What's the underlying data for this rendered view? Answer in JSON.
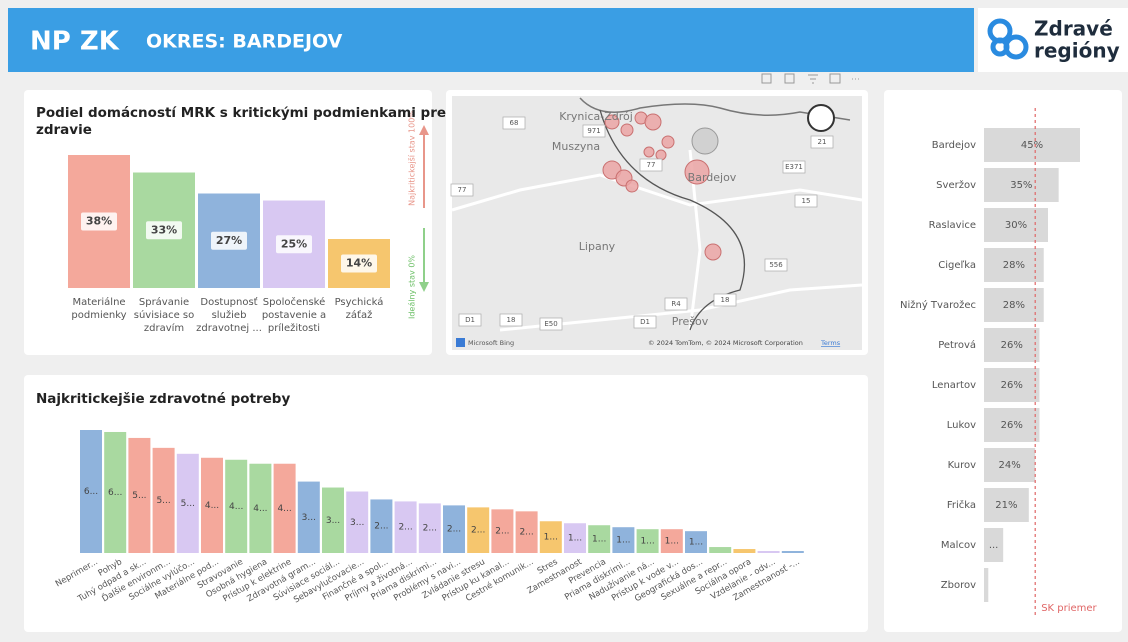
{
  "header": {
    "title": "NP ZK",
    "subtitle": "OKRES: BARDEJOV",
    "logo": [
      "Zdravé",
      "regióny"
    ]
  },
  "map": {
    "places": [
      "Krynica-Zdrój",
      "Muszyna",
      "Bardejov",
      "Lipany",
      "Prešov"
    ],
    "roads": [
      "68",
      "971",
      "77",
      "21",
      "E371",
      "77",
      "15",
      "556",
      "R4",
      "18",
      "D1",
      "18",
      "E50",
      "D1"
    ],
    "provider": "Microsoft Bing",
    "attribution": "© 2024 TomTom, © 2024 Microsoft Corporation",
    "terms": "Terms"
  },
  "chart_data": [
    {
      "type": "bar",
      "title": "Podiel domácností MRK s kritickými podmienkami pre zdravie",
      "categories": [
        "Materiálne podmienky",
        "Správanie súvisiace so zdravím",
        "Dostupnosť služieb zdravotnej ...",
        "Spoločenské postavenie a príležitosti",
        "Psychická záťaž"
      ],
      "values": [
        38,
        33,
        27,
        25,
        14
      ],
      "value_labels": [
        "38%",
        "33%",
        "27%",
        "25%",
        "14%"
      ],
      "colors": [
        "#f4a89b",
        "#a9d9a0",
        "#8fb3dc",
        "#d8c8f2",
        "#f6c66e"
      ],
      "annotations": [
        "Najkritickejší stav 100%",
        "Ideálny stav 0%"
      ]
    },
    {
      "type": "bar",
      "title": "Najkritickejšie zdravotné potreby",
      "categories": [
        "Neprimer...",
        "Pohyb",
        "Tuhý odpad a sk...",
        "Ďalšie environm...",
        "Sociálne vylúčo...",
        "Materiálne pod...",
        "Stravovanie",
        "Osobná hygiena",
        "Prístup k elektrine",
        "Zdravotná gram...",
        "Súvisiace sociál...",
        "Sebavylučovacie...",
        "Finančné a spol...",
        "Príjmy a životná...",
        "Priama diskrimi...",
        "Problémy s navi...",
        "Zvládanie stresu",
        "Prístup ku kanal...",
        "Cestné komunik...",
        "Stres",
        "Zamestnanost",
        "Prevencia",
        "Priama diskrimi...",
        "Nadužívanie ná...",
        "Prístup k vode v...",
        "Geografická dos...",
        "Sexuálne a repr...",
        "Sociálna opora",
        "Vzdelanie - odv...",
        "Zamestnanosť -..."
      ],
      "values": [
        62,
        61,
        58,
        53,
        50,
        48,
        47,
        45,
        45,
        36,
        33,
        31,
        27,
        26,
        25,
        24,
        23,
        22,
        21,
        16,
        15,
        14,
        13,
        12,
        12,
        11,
        3,
        2,
        1,
        1
      ],
      "value_labels": [
        "6...",
        "6...",
        "5...",
        "5...",
        "5...",
        "4...",
        "4...",
        "4...",
        "4...",
        "3...",
        "3...",
        "3...",
        "2...",
        "2...",
        "2...",
        "2...",
        "2...",
        "2...",
        "2...",
        "1...",
        "1...",
        "1...",
        "1...",
        "1...",
        "1...",
        "1...",
        null,
        null,
        null,
        null
      ],
      "colors": [
        "#8fb3dc",
        "#a9d9a0",
        "#f4a89b",
        "#f4a89b",
        "#d8c8f2",
        "#f4a89b",
        "#a9d9a0",
        "#a9d9a0",
        "#f4a89b",
        "#8fb3dc",
        "#a9d9a0",
        "#d8c8f2",
        "#8fb3dc",
        "#d8c8f2",
        "#d8c8f2",
        "#8fb3dc",
        "#f6c66e",
        "#f4a89b",
        "#f4a89b",
        "#f6c66e",
        "#d8c8f2",
        "#a9d9a0",
        "#8fb3dc",
        "#a9d9a0",
        "#f4a89b",
        "#8fb3dc",
        "#a9d9a0",
        "#f6c66e",
        "#d8c8f2",
        "#8fb3dc"
      ]
    },
    {
      "type": "barh",
      "categories": [
        "Bardejov",
        "Sveržov",
        "Raslavice",
        "Cigeľka",
        "Nižný Tvarožec",
        "Petrová",
        "Lenartov",
        "Lukov",
        "Kurov",
        "Frička",
        "Malcov",
        "Zborov"
      ],
      "values": [
        45,
        35,
        30,
        28,
        28,
        26,
        26,
        26,
        24,
        21,
        9,
        2
      ],
      "value_labels": [
        "45%",
        "35%",
        "30%",
        "28%",
        "28%",
        "26%",
        "26%",
        "26%",
        "24%",
        "21%",
        "...",
        null
      ],
      "color": "#d9d9d9",
      "reference": {
        "label": "SK priemer",
        "value": 24,
        "color": "#e06666"
      }
    }
  ]
}
